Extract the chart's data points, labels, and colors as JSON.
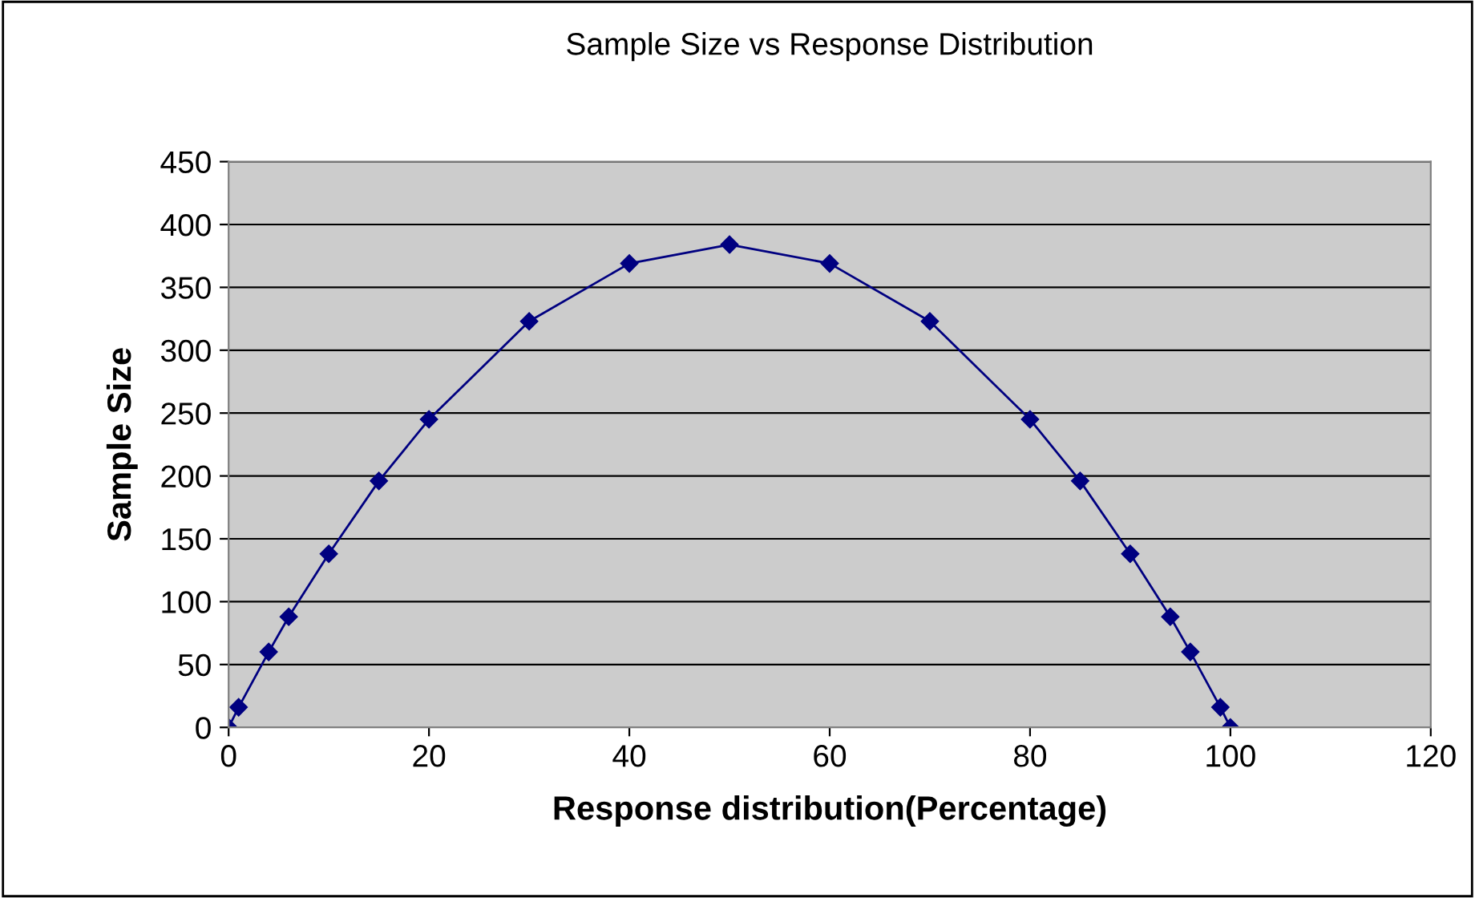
{
  "chart_data": {
    "type": "line",
    "title": "Sample Size vs Response Distribution",
    "xlabel": "Response distribution(Percentage)",
    "ylabel": "Sample Size",
    "x": [
      0,
      1,
      4,
      6,
      10,
      15,
      20,
      30,
      40,
      50,
      60,
      70,
      80,
      85,
      90,
      94,
      96,
      99,
      100
    ],
    "series": [
      {
        "color": "#000080",
        "values": [
          0,
          16,
          60,
          88,
          138,
          196,
          245,
          323,
          369,
          384,
          369,
          323,
          245,
          196,
          138,
          88,
          60,
          16,
          0
        ]
      }
    ],
    "xlim": [
      0,
      120
    ],
    "xticks": [
      0,
      20,
      40,
      60,
      80,
      100,
      120
    ],
    "ylim": [
      0,
      450
    ],
    "yticks": [
      0,
      50,
      100,
      150,
      200,
      250,
      300,
      350,
      400,
      450
    ],
    "grid": "y",
    "legend": false,
    "marker": "diamond",
    "line_style": "solid"
  }
}
